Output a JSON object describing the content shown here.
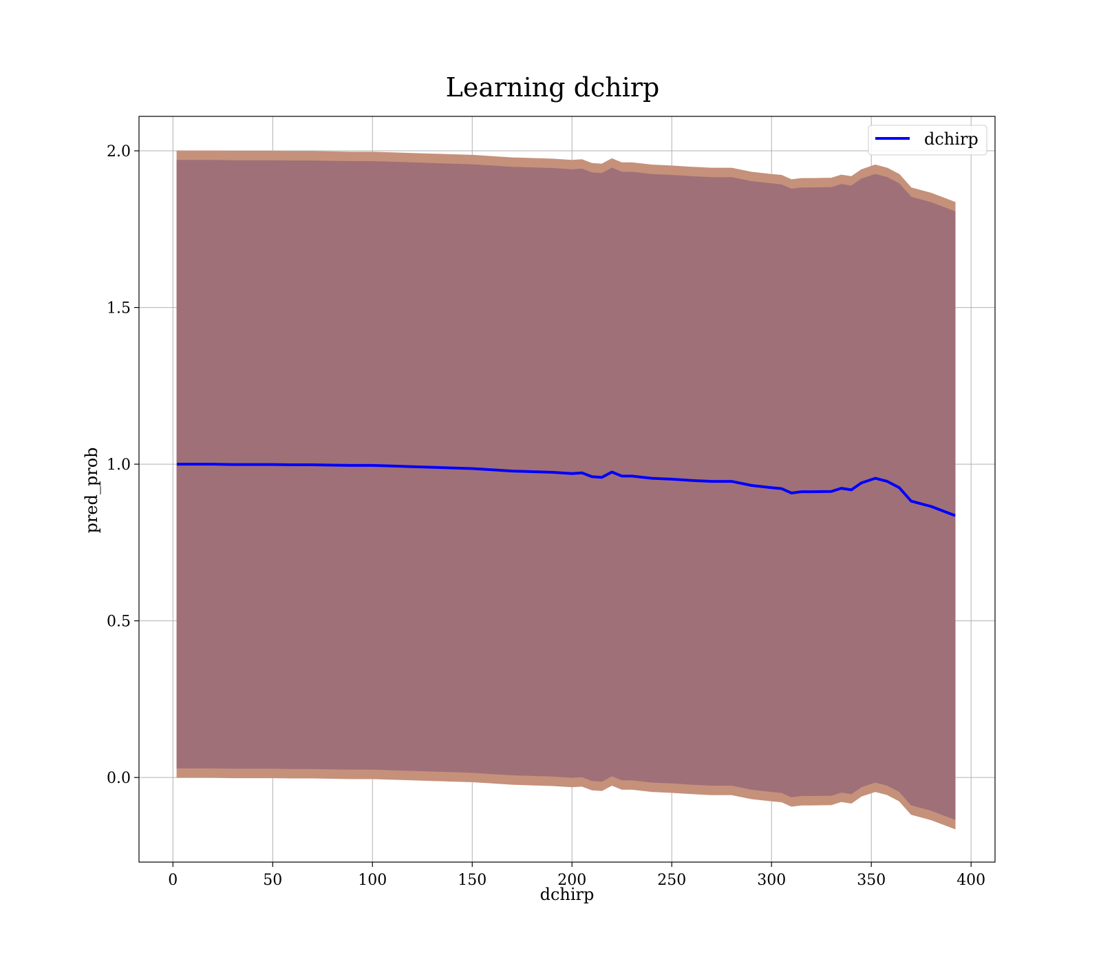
{
  "chart_data": {
    "type": "line",
    "title": "Learning dchirp",
    "xlabel": "dchirp",
    "ylabel": "pred_prob",
    "xlim": [
      -17,
      412
    ],
    "ylim": [
      -0.27,
      2.11
    ],
    "xticks": [
      0,
      50,
      100,
      150,
      200,
      250,
      300,
      350,
      400
    ],
    "yticks": [
      0.0,
      0.5,
      1.0,
      1.5,
      2.0
    ],
    "xtick_labels": [
      "0",
      "50",
      "100",
      "150",
      "200",
      "250",
      "300",
      "350",
      "400"
    ],
    "ytick_labels": [
      "0.0",
      "0.5",
      "1.0",
      "1.5",
      "2.0"
    ],
    "grid": true,
    "legend_position": "top-right",
    "colors": {
      "line": "#0000ff",
      "outer_band": "#c5917a",
      "inner_band": "#a07079",
      "grid": "#b0b0b0"
    },
    "series": [
      {
        "name": "dchirp",
        "x": [
          2,
          10,
          20,
          30,
          40,
          50,
          60,
          70,
          80,
          90,
          100,
          110,
          120,
          130,
          140,
          150,
          155,
          160,
          170,
          180,
          190,
          200,
          205,
          210,
          215,
          220,
          225,
          230,
          240,
          250,
          260,
          270,
          280,
          290,
          300,
          305,
          310,
          315,
          320,
          330,
          335,
          340,
          345,
          352,
          358,
          364,
          370,
          380,
          392
        ],
        "y": [
          1.0,
          1.0,
          1.0,
          0.999,
          0.999,
          0.999,
          0.998,
          0.998,
          0.997,
          0.996,
          0.996,
          0.994,
          0.992,
          0.99,
          0.988,
          0.986,
          0.984,
          0.982,
          0.978,
          0.976,
          0.974,
          0.97,
          0.972,
          0.96,
          0.958,
          0.975,
          0.962,
          0.962,
          0.955,
          0.952,
          0.948,
          0.945,
          0.945,
          0.932,
          0.925,
          0.922,
          0.908,
          0.912,
          0.912,
          0.913,
          0.923,
          0.918,
          0.94,
          0.955,
          0.945,
          0.925,
          0.882,
          0.865,
          0.836
        ]
      }
    ],
    "bands": [
      {
        "role": "outer",
        "upper": [
          2.0,
          2.0,
          2.0,
          1.999,
          1.999,
          1.999,
          1.998,
          1.998,
          1.997,
          1.996,
          1.996,
          1.994,
          1.992,
          1.99,
          1.988,
          1.986,
          1.984,
          1.982,
          1.978,
          1.976,
          1.974,
          1.97,
          1.972,
          1.96,
          1.958,
          1.975,
          1.962,
          1.962,
          1.955,
          1.952,
          1.948,
          1.945,
          1.945,
          1.932,
          1.925,
          1.922,
          1.908,
          1.912,
          1.912,
          1.913,
          1.923,
          1.918,
          1.94,
          1.955,
          1.945,
          1.925,
          1.882,
          1.865,
          1.836
        ],
        "lower": [
          0.0,
          0.0,
          0.0,
          -0.001,
          -0.001,
          -0.001,
          -0.002,
          -0.002,
          -0.003,
          -0.004,
          -0.004,
          -0.006,
          -0.008,
          -0.01,
          -0.012,
          -0.014,
          -0.016,
          -0.018,
          -0.022,
          -0.024,
          -0.026,
          -0.03,
          -0.028,
          -0.04,
          -0.042,
          -0.025,
          -0.038,
          -0.038,
          -0.045,
          -0.048,
          -0.052,
          -0.055,
          -0.055,
          -0.068,
          -0.075,
          -0.078,
          -0.092,
          -0.088,
          -0.088,
          -0.087,
          -0.077,
          -0.082,
          -0.06,
          -0.045,
          -0.055,
          -0.075,
          -0.118,
          -0.135,
          -0.164
        ]
      },
      {
        "role": "inner",
        "upper": [
          1.97,
          1.97,
          1.97,
          1.969,
          1.969,
          1.969,
          1.968,
          1.968,
          1.967,
          1.966,
          1.966,
          1.964,
          1.962,
          1.96,
          1.958,
          1.956,
          1.954,
          1.952,
          1.948,
          1.946,
          1.944,
          1.94,
          1.942,
          1.93,
          1.928,
          1.945,
          1.932,
          1.932,
          1.925,
          1.922,
          1.918,
          1.915,
          1.915,
          1.902,
          1.895,
          1.892,
          1.878,
          1.882,
          1.882,
          1.883,
          1.893,
          1.888,
          1.91,
          1.925,
          1.915,
          1.895,
          1.852,
          1.835,
          1.806
        ],
        "lower": [
          0.03,
          0.03,
          0.03,
          0.029,
          0.029,
          0.029,
          0.028,
          0.028,
          0.027,
          0.026,
          0.026,
          0.024,
          0.022,
          0.02,
          0.018,
          0.016,
          0.014,
          0.012,
          0.008,
          0.006,
          0.004,
          0.0,
          0.002,
          -0.01,
          -0.012,
          0.005,
          -0.008,
          -0.008,
          -0.015,
          -0.018,
          -0.022,
          -0.025,
          -0.025,
          -0.038,
          -0.045,
          -0.048,
          -0.062,
          -0.058,
          -0.058,
          -0.057,
          -0.047,
          -0.052,
          -0.03,
          -0.015,
          -0.025,
          -0.045,
          -0.088,
          -0.105,
          -0.134
        ]
      }
    ]
  }
}
